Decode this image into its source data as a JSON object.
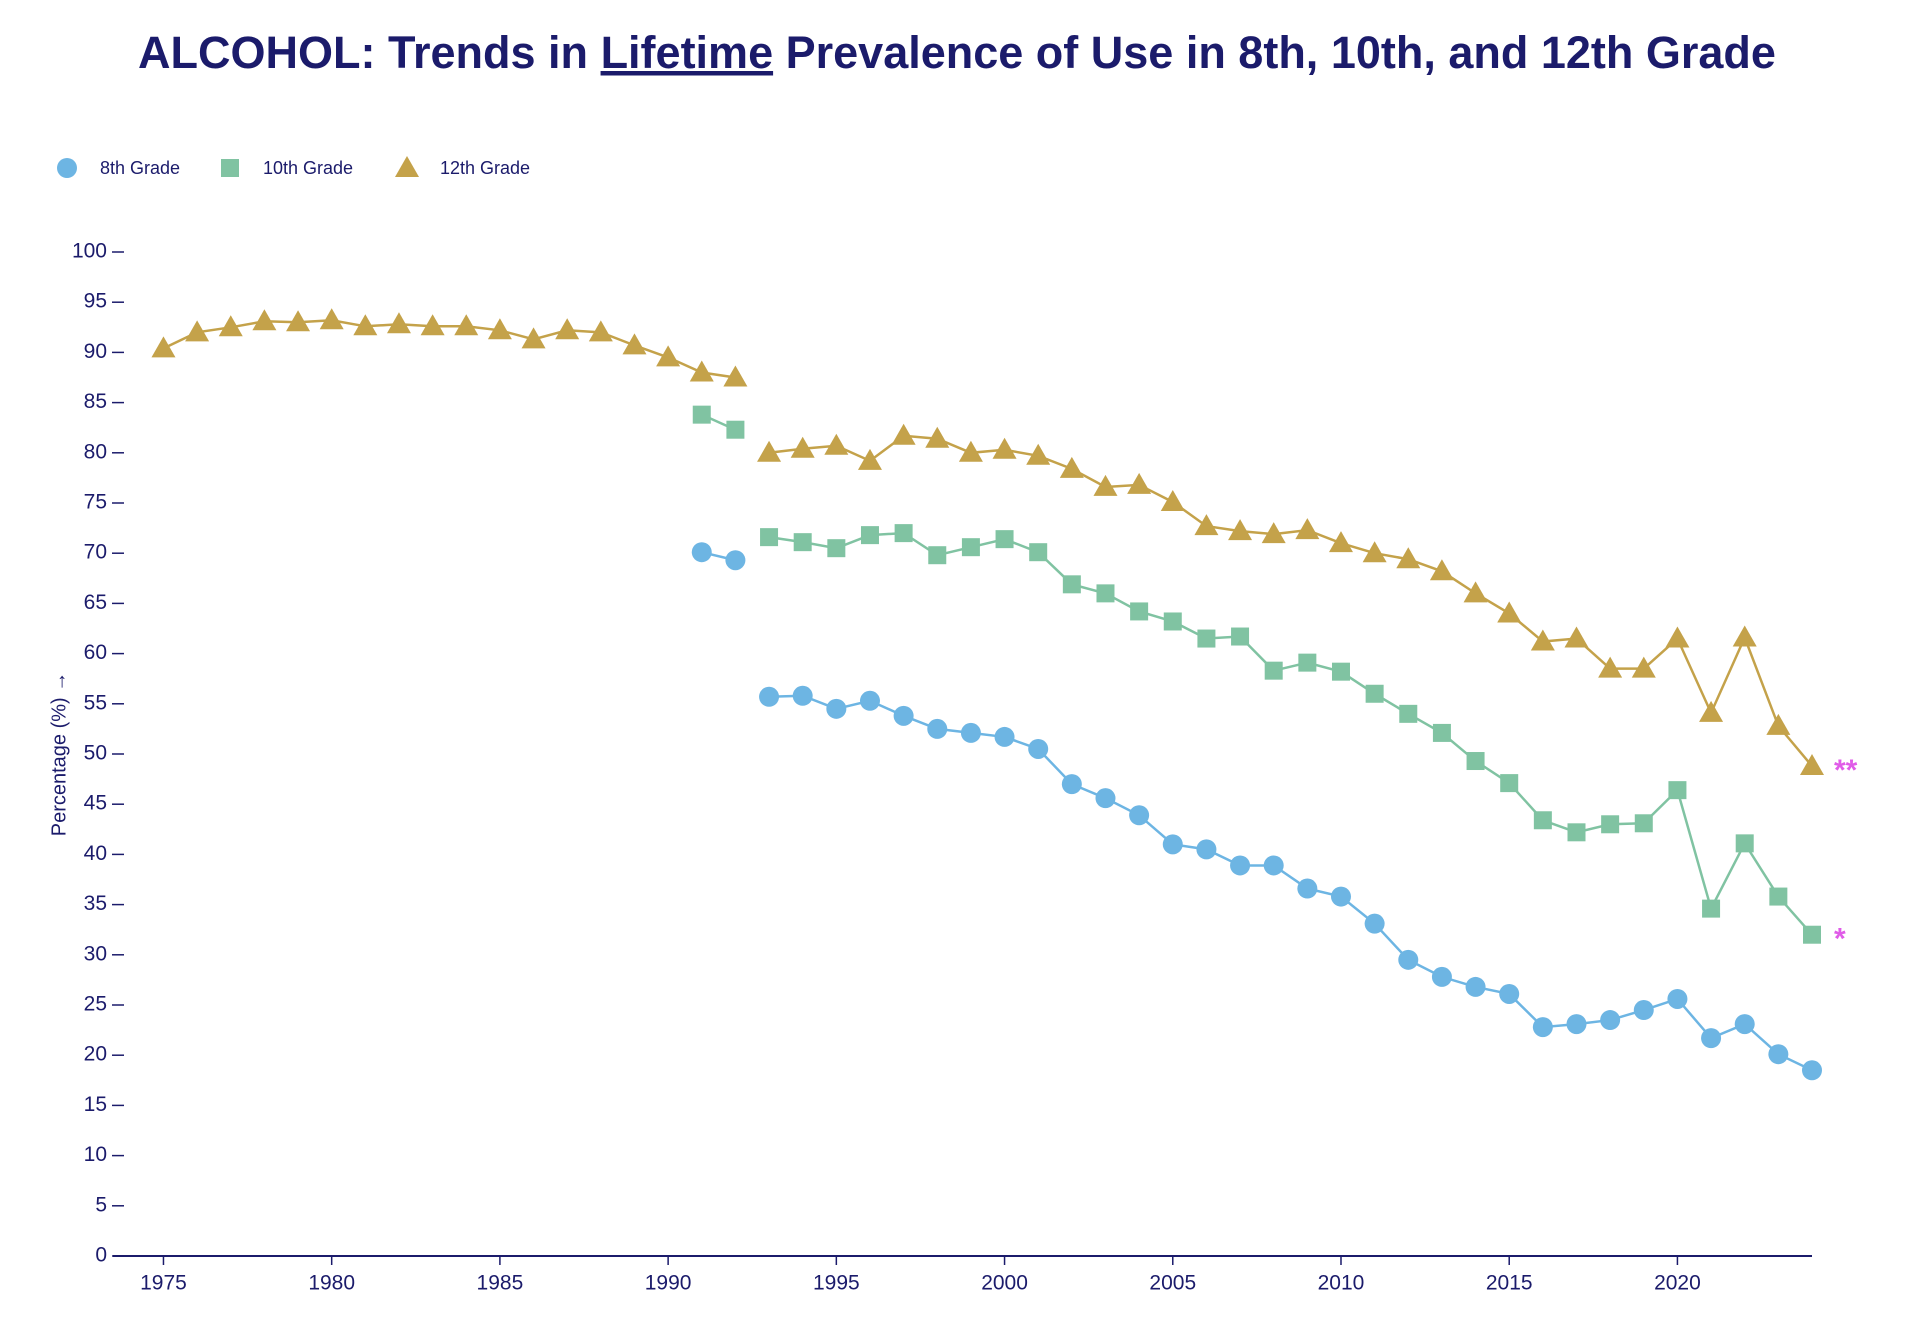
{
  "chart_data": {
    "type": "line",
    "title": {
      "before": "ALCOHOL: Trends in",
      "emphasis": "Lifetime",
      "after": "Prevalence of Use in 8th, 10th, and 12th Grade"
    },
    "y_label": "Percentage (%) →",
    "xlim": [
      1973.5,
      2024
    ],
    "xticks": [
      1975,
      1980,
      1985,
      1990,
      1995,
      2000,
      2005,
      2010,
      2015,
      2020
    ],
    "ylim": [
      0,
      100
    ],
    "yticks": [
      0,
      5,
      10,
      15,
      20,
      25,
      30,
      35,
      40,
      45,
      50,
      55,
      60,
      65,
      70,
      75,
      80,
      85,
      90,
      95,
      100
    ],
    "series": [
      {
        "name": "8th Grade",
        "color": "#6db5e3",
        "marker": "circle",
        "x": [
          1991,
          1992,
          null,
          1993,
          1994,
          1995,
          1996,
          1997,
          1998,
          1999,
          2000,
          2001,
          2002,
          2003,
          2004,
          2005,
          2006,
          2007,
          2008,
          2009,
          2010,
          2011,
          2012,
          2013,
          2014,
          2015,
          2016,
          2017,
          2018,
          2019,
          2020,
          2021,
          2022,
          2023,
          2024
        ],
        "values": [
          70.1,
          69.3,
          null,
          55.7,
          55.8,
          54.5,
          55.3,
          53.8,
          52.5,
          52.1,
          51.7,
          50.5,
          47.0,
          45.6,
          43.9,
          41.0,
          40.5,
          38.9,
          38.9,
          36.6,
          35.8,
          33.1,
          29.5,
          27.8,
          26.8,
          26.1,
          22.8,
          23.1,
          23.5,
          24.5,
          25.6,
          21.7,
          23.1,
          20.1,
          18.5
        ]
      },
      {
        "name": "10th Grade",
        "color": "#80c3a2",
        "marker": "square",
        "note": "*",
        "x": [
          1991,
          1992,
          null,
          1993,
          1994,
          1995,
          1996,
          1997,
          1998,
          1999,
          2000,
          2001,
          2002,
          2003,
          2004,
          2005,
          2006,
          2007,
          2008,
          2009,
          2010,
          2011,
          2012,
          2013,
          2014,
          2015,
          2016,
          2017,
          2018,
          2019,
          2020,
          2021,
          2022,
          2023,
          2024
        ],
        "values": [
          83.8,
          82.3,
          null,
          71.6,
          71.1,
          70.5,
          71.8,
          72.0,
          69.8,
          70.6,
          71.4,
          70.1,
          66.9,
          66.0,
          64.2,
          63.2,
          61.5,
          61.7,
          58.3,
          59.1,
          58.2,
          56.0,
          54.0,
          52.1,
          49.3,
          47.1,
          43.4,
          42.2,
          43.0,
          43.1,
          46.4,
          34.6,
          41.1,
          35.8,
          32.0
        ]
      },
      {
        "name": "12th Grade",
        "color": "#c4a24a",
        "marker": "triangle",
        "note": "**",
        "x": [
          1975,
          1976,
          1977,
          1978,
          1979,
          1980,
          1981,
          1982,
          1983,
          1984,
          1985,
          1986,
          1987,
          1988,
          1989,
          1990,
          1991,
          1992,
          null,
          1993,
          1994,
          1995,
          1996,
          1997,
          1998,
          1999,
          2000,
          2001,
          2002,
          2003,
          2004,
          2005,
          2006,
          2007,
          2008,
          2009,
          2010,
          2011,
          2012,
          2013,
          2014,
          2015,
          2016,
          2017,
          2018,
          2019,
          2020,
          2021,
          2022,
          2023,
          2024
        ],
        "values": [
          90.4,
          92.0,
          92.5,
          93.1,
          93.0,
          93.2,
          92.6,
          92.8,
          92.6,
          92.6,
          92.2,
          91.3,
          92.2,
          92.0,
          90.7,
          89.5,
          88.0,
          87.5,
          null,
          80.0,
          80.4,
          80.7,
          79.2,
          81.7,
          81.4,
          80.0,
          80.3,
          79.7,
          78.4,
          76.6,
          76.8,
          75.1,
          72.7,
          72.2,
          71.9,
          72.3,
          71.0,
          70.0,
          69.4,
          68.2,
          66.0,
          64.0,
          61.2,
          61.5,
          58.5,
          58.5,
          61.5,
          54.1,
          61.6,
          52.8,
          48.8
        ]
      }
    ]
  }
}
